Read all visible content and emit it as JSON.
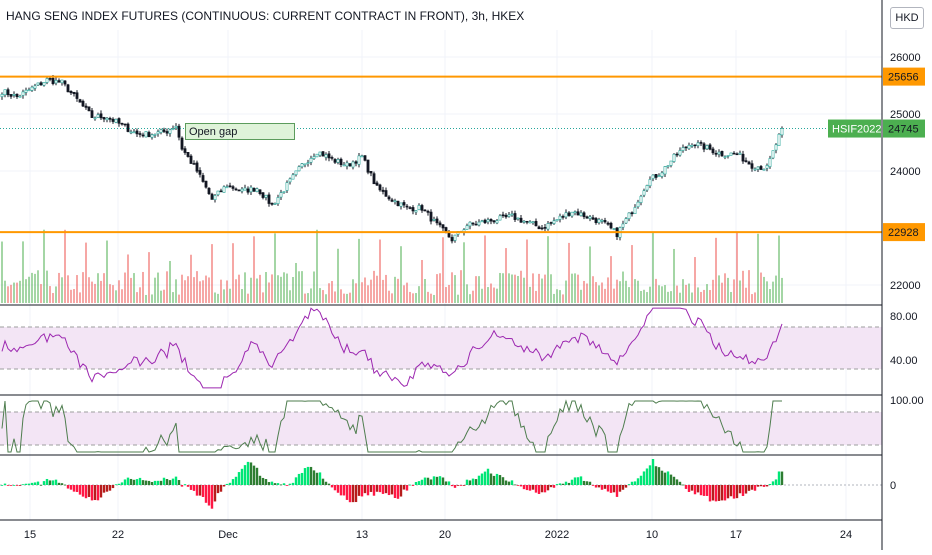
{
  "chart_data": {
    "type": "candlestick",
    "title": "HANG SENG INDEX FUTURES (CONTINUOUS: CURRENT CONTRACT IN FRONT), 3h, HKEX",
    "currency": "HKD",
    "symbol_tag": "HSIF2022",
    "last_price": "24745",
    "price_axis": {
      "ticks": [
        "26000",
        "25000",
        "24000",
        "22000"
      ],
      "ylim": [
        21600,
        26300
      ]
    },
    "horizontal_lines": [
      {
        "price": 25656,
        "label": "25656"
      },
      {
        "price": 22928,
        "label": "22928"
      }
    ],
    "annotation": "Open gap",
    "x_axis": {
      "ticks": [
        "15",
        "22",
        "Dec",
        "13",
        "20",
        "2022",
        "10",
        "17",
        "24"
      ]
    },
    "anchors": [
      [
        0,
        25400
      ],
      [
        5,
        25300
      ],
      [
        10,
        25450
      ],
      [
        15,
        25600
      ],
      [
        20,
        25550
      ],
      [
        25,
        25250
      ],
      [
        30,
        24950
      ],
      [
        35,
        24950
      ],
      [
        40,
        24800
      ],
      [
        45,
        24650
      ],
      [
        50,
        24650
      ],
      [
        55,
        24700
      ],
      [
        58,
        24800
      ],
      [
        60,
        24400
      ],
      [
        65,
        24000
      ],
      [
        70,
        23500
      ],
      [
        75,
        23750
      ],
      [
        80,
        23650
      ],
      [
        85,
        23700
      ],
      [
        90,
        23400
      ],
      [
        95,
        23750
      ],
      [
        100,
        24100
      ],
      [
        105,
        24350
      ],
      [
        110,
        24200
      ],
      [
        115,
        24100
      ],
      [
        120,
        24250
      ],
      [
        125,
        23700
      ],
      [
        130,
        23500
      ],
      [
        135,
        23350
      ],
      [
        140,
        23350
      ],
      [
        145,
        23050
      ],
      [
        150,
        22800
      ],
      [
        155,
        23050
      ],
      [
        160,
        23100
      ],
      [
        165,
        23150
      ],
      [
        170,
        23200
      ],
      [
        175,
        23100
      ],
      [
        180,
        23000
      ],
      [
        185,
        23150
      ],
      [
        190,
        23300
      ],
      [
        195,
        23200
      ],
      [
        200,
        23100
      ],
      [
        205,
        22900
      ],
      [
        210,
        23300
      ],
      [
        215,
        23800
      ],
      [
        220,
        24000
      ],
      [
        225,
        24300
      ],
      [
        230,
        24500
      ],
      [
        235,
        24400
      ],
      [
        240,
        24300
      ],
      [
        245,
        24300
      ],
      [
        250,
        24100
      ],
      [
        255,
        24050
      ],
      [
        260,
        24745
      ]
    ],
    "volume_axis_hidden": true,
    "rsi": {
      "ticks": [
        "80.00",
        "40.00"
      ],
      "upper": 70,
      "lower": 30
    },
    "stoch": {
      "ticks": [
        "100.00"
      ],
      "upper": 80,
      "lower": 20
    },
    "histogram": {
      "ticks": [
        "0"
      ]
    }
  }
}
